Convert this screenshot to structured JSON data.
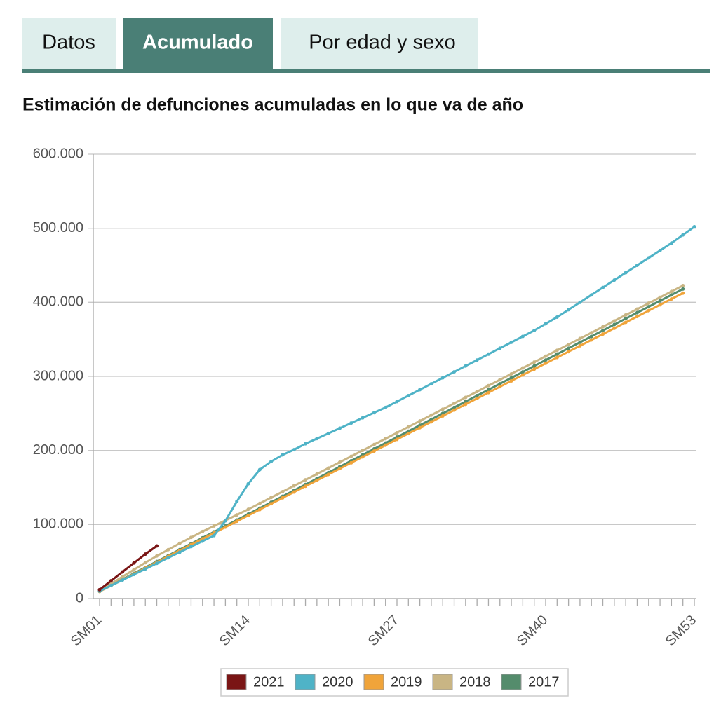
{
  "tabs": [
    "Datos",
    "Acumulado",
    "Por edad y sexo"
  ],
  "chart_data": {
    "type": "line",
    "title": "Estimación de defunciones acumuladas en lo que va de año",
    "categories": [
      "SM01",
      null,
      null,
      null,
      null,
      null,
      null,
      null,
      null,
      null,
      null,
      null,
      null,
      "SM14",
      null,
      null,
      null,
      null,
      null,
      null,
      null,
      null,
      null,
      null,
      null,
      null,
      "SM27",
      null,
      null,
      null,
      null,
      null,
      null,
      null,
      null,
      null,
      null,
      null,
      null,
      "SM40",
      null,
      null,
      null,
      null,
      null,
      null,
      null,
      null,
      null,
      null,
      null,
      null,
      "SM53"
    ],
    "ylim": [
      0,
      600000
    ],
    "yticks": [
      0,
      {
        "value": 100000,
        "label": "100.000"
      },
      {
        "value": 200000,
        "label": "200.000"
      },
      {
        "value": 300000,
        "label": "300.000"
      },
      {
        "value": 400000,
        "label": "400.000"
      },
      {
        "value": 500000,
        "label": "500.000"
      },
      {
        "value": 600000,
        "label": "600.000"
      }
    ],
    "grid": true,
    "legend": "bottom",
    "series": [
      {
        "name": "2021",
        "color": "#7a1515",
        "values": [
          12000,
          24000,
          36000,
          48000,
          60000,
          71000,
          null,
          null,
          null,
          null,
          null,
          null,
          null,
          null,
          null,
          null,
          null,
          null,
          null,
          null,
          null,
          null,
          null,
          null,
          null,
          null,
          null,
          null,
          null,
          null,
          null,
          null,
          null,
          null,
          null,
          null,
          null,
          null,
          null,
          null,
          null,
          null,
          null,
          null,
          null,
          null,
          null,
          null,
          null,
          null,
          null,
          null,
          null
        ]
      },
      {
        "name": "2020",
        "color": "#4fb3c7",
        "values": [
          10000,
          17500,
          25000,
          32500,
          40000,
          47500,
          55000,
          62500,
          70000,
          77500,
          85000,
          105000,
          131000,
          155000,
          174000,
          185000,
          194000,
          201000,
          209000,
          216000,
          223000,
          230000,
          237000,
          244000,
          251000,
          258000,
          266000,
          274000,
          282000,
          290000,
          298000,
          306000,
          314000,
          322000,
          330000,
          338000,
          346000,
          354000,
          362000,
          371000,
          380000,
          390000,
          400000,
          410000,
          420000,
          430000,
          440000,
          450000,
          460000,
          470000,
          480000,
          491000,
          502000
        ]
      },
      {
        "name": "2019",
        "color": "#f0a43a",
        "values": [
          9500,
          17400,
          25300,
          33200,
          41100,
          49000,
          56900,
          64800,
          72700,
          80600,
          88500,
          96400,
          104300,
          112200,
          120100,
          128000,
          135900,
          143800,
          151700,
          159600,
          167500,
          175400,
          183300,
          191200,
          199100,
          207000,
          214900,
          222800,
          230700,
          238600,
          246500,
          254400,
          262300,
          270200,
          278100,
          286000,
          293900,
          301800,
          309700,
          317600,
          325500,
          333400,
          341300,
          349200,
          357100,
          365000,
          372900,
          380800,
          388700,
          396600,
          404500,
          412400,
          null
        ]
      },
      {
        "name": "2018",
        "color": "#c9b584",
        "values": [
          11000,
          20000,
          29500,
          39000,
          48500,
          57500,
          66000,
          74500,
          82500,
          90500,
          98000,
          105500,
          113000,
          120500,
          128450,
          136400,
          144350,
          152300,
          160250,
          168200,
          176150,
          184100,
          192050,
          200000,
          207950,
          215900,
          223850,
          231800,
          239750,
          247700,
          255650,
          263600,
          271550,
          279500,
          287450,
          295400,
          303350,
          311300,
          319250,
          327200,
          335150,
          343100,
          351050,
          359000,
          366950,
          374900,
          382850,
          390800,
          398750,
          406700,
          414650,
          422600,
          null
        ]
      },
      {
        "name": "2017",
        "color": "#548c6c",
        "values": [
          10000,
          18000,
          26000,
          34000,
          42000,
          50000,
          58000,
          66000,
          74000,
          82000,
          90000,
          98000,
          106000,
          114000,
          122000,
          130000,
          138000,
          146000,
          154000,
          162000,
          170000,
          178000,
          186000,
          194000,
          202000,
          210000,
          218000,
          226000,
          234000,
          242000,
          250000,
          258000,
          266000,
          274000,
          282000,
          290000,
          298000,
          306000,
          314000,
          322000,
          330000,
          338000,
          346000,
          354000,
          362000,
          370000,
          378000,
          386000,
          394000,
          402000,
          410000,
          418000,
          null
        ]
      }
    ]
  }
}
